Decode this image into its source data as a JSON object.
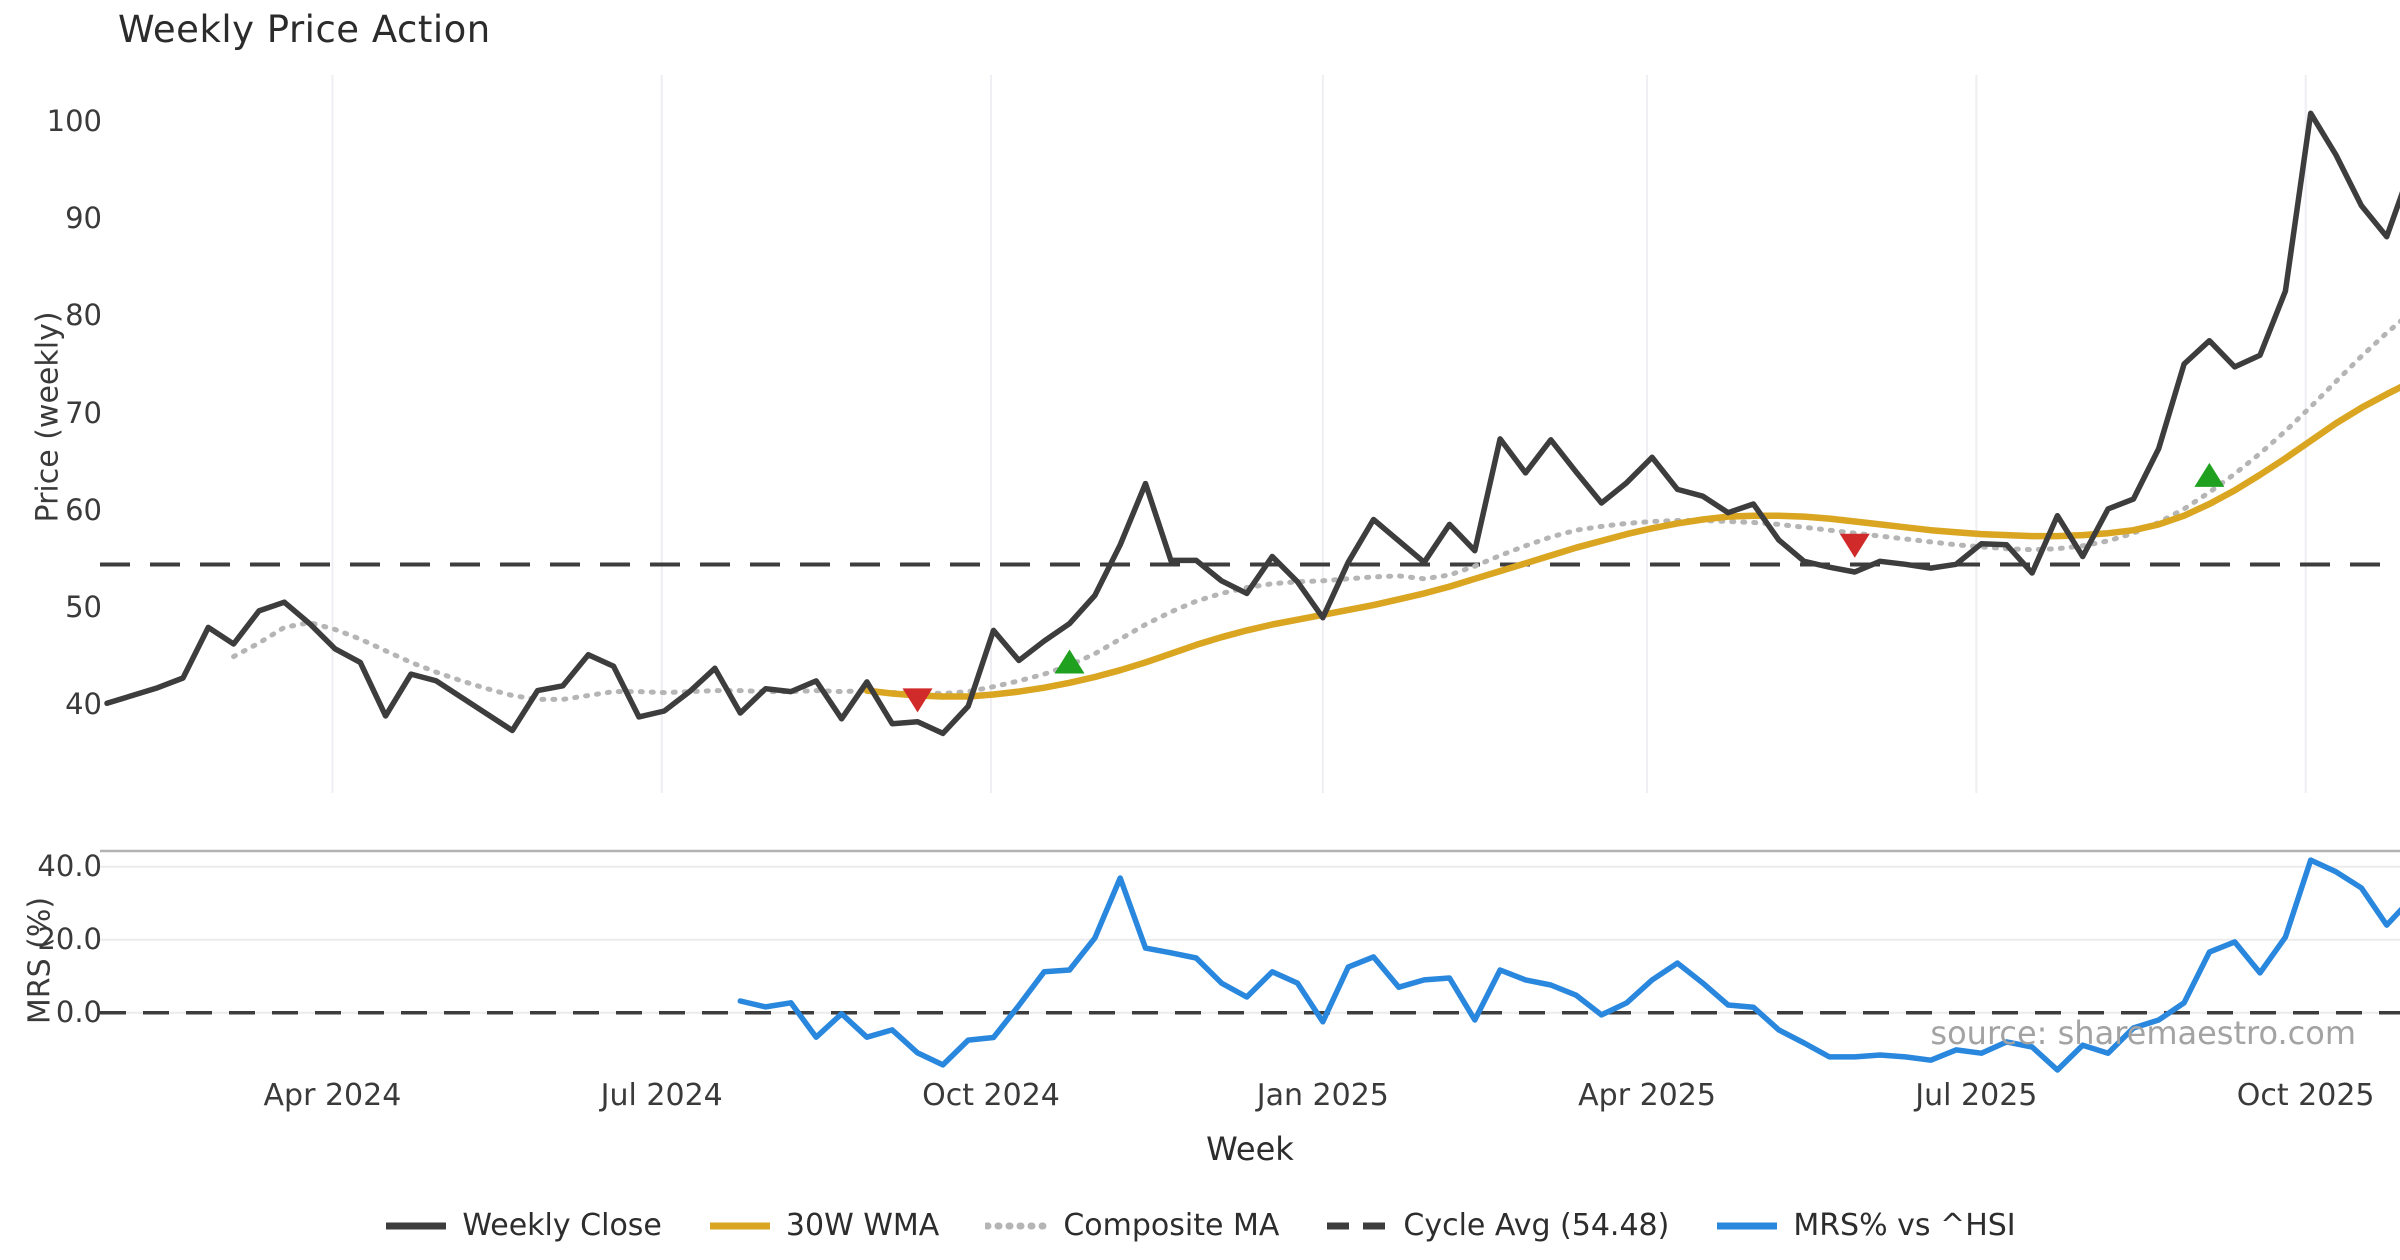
{
  "title": "Weekly Price Action",
  "xlabel": "Week",
  "source_text": "source: sharemaestro.com",
  "price_panel": {
    "ylabel": "Price (weekly)",
    "yticks": [
      "40",
      "50",
      "60",
      "70",
      "80",
      "90",
      "100"
    ]
  },
  "mrs_panel": {
    "ylabel": "MRS (%)",
    "yticks": [
      "0.0",
      "20.0",
      "40.0"
    ]
  },
  "legend": {
    "items": [
      {
        "label": "Weekly Close",
        "color": "#3d3d3d",
        "style": "solid"
      },
      {
        "label": "30W WMA",
        "color": "#DAA520",
        "style": "solid"
      },
      {
        "label": "Composite MA",
        "color": "#b5b5b5",
        "style": "dotted"
      },
      {
        "label": "Cycle Avg (54.48)",
        "color": "#3d3d3d",
        "style": "dashed"
      },
      {
        "label": "MRS% vs ^HSI",
        "color": "#2a87de",
        "style": "solid"
      }
    ]
  },
  "colors": {
    "weekly_close": "#3d3d3d",
    "wma_30w": "#DAA520",
    "composite_ma": "#b5b5b5",
    "cycle_avg": "#3d3d3d",
    "mrs": "#2a87de",
    "buy_marker": "#1fa01f",
    "sell_marker": "#d02a2a",
    "gridline": "#eeeef3",
    "panel_border": "#b3b3b3",
    "mrs_gridline": "#ececec"
  },
  "chart_data": {
    "type": "line",
    "title": "Weekly Price Action",
    "xlabel": "Week",
    "x_unit": "week_index",
    "n_weeks": 92,
    "x_ticks": [
      {
        "label": "Apr 2024",
        "week": 8.9
      },
      {
        "label": "Jul 2024",
        "week": 21.9
      },
      {
        "label": "Oct 2024",
        "week": 34.9
      },
      {
        "label": "Jan 2025",
        "week": 48.0
      },
      {
        "label": "Apr 2025",
        "week": 60.8
      },
      {
        "label": "Jul 2025",
        "week": 73.8
      },
      {
        "label": "Oct 2025",
        "week": 86.8
      }
    ],
    "price_panel": {
      "ylabel": "Price (weekly)",
      "ylim": [
        36,
        103
      ],
      "yticks": [
        40,
        50,
        60,
        70,
        80,
        90,
        100
      ],
      "cycle_avg": 54.48,
      "series": [
        {
          "name": "Weekly Close",
          "style": "solid",
          "start_week": 0,
          "values": [
            40.2,
            41.0,
            41.8,
            42.8,
            48.0,
            46.3,
            49.7,
            50.6,
            48.4,
            45.8,
            44.4,
            38.9,
            43.2,
            42.5,
            40.8,
            39.1,
            37.4,
            41.5,
            42.0,
            45.2,
            44.0,
            38.8,
            39.4,
            41.4,
            43.8,
            39.2,
            41.7,
            41.4,
            42.5,
            38.6,
            42.4,
            38.1,
            38.3,
            37.1,
            39.9,
            47.7,
            44.6,
            46.6,
            48.4,
            51.3,
            56.5,
            62.8,
            54.9,
            54.9,
            52.8,
            51.5,
            55.3,
            52.7,
            49.0,
            54.7,
            59.1,
            56.9,
            54.7,
            58.6,
            55.9,
            67.4,
            63.9,
            67.3,
            64.0,
            60.8,
            62.9,
            65.5,
            62.2,
            61.5,
            59.8,
            60.7,
            57.0,
            54.8,
            54.2,
            53.7,
            54.8,
            54.5,
            54.1,
            54.5,
            56.6,
            56.5,
            53.6,
            59.5,
            55.3,
            60.2,
            61.2,
            66.4,
            75.1,
            77.5,
            74.8,
            76.0,
            82.6,
            100.9,
            96.6,
            91.4,
            88.2,
            95.5
          ]
        },
        {
          "name": "30W WMA",
          "style": "solid",
          "start_week": 30,
          "values": [
            41.5,
            41.2,
            41.0,
            40.9,
            40.9,
            41.1,
            41.4,
            41.8,
            42.3,
            42.9,
            43.6,
            44.4,
            45.3,
            46.2,
            47.0,
            47.7,
            48.3,
            48.8,
            49.3,
            49.8,
            50.3,
            50.9,
            51.5,
            52.2,
            53.0,
            53.8,
            54.6,
            55.4,
            56.2,
            56.9,
            57.6,
            58.2,
            58.7,
            59.1,
            59.4,
            59.5,
            59.5,
            59.4,
            59.2,
            58.9,
            58.6,
            58.3,
            58.0,
            57.8,
            57.6,
            57.5,
            57.4,
            57.4,
            57.5,
            57.7,
            58.0,
            58.6,
            59.5,
            60.7,
            62.1,
            63.7,
            65.4,
            67.2,
            69.0,
            70.6,
            72.0,
            73.3
          ]
        },
        {
          "name": "Composite MA",
          "style": "dotted",
          "start_week": 5,
          "values": [
            45.0,
            46.4,
            48.0,
            48.5,
            47.8,
            46.8,
            45.6,
            44.4,
            43.4,
            42.5,
            41.7,
            41.0,
            40.6,
            40.6,
            41.0,
            41.4,
            41.4,
            41.3,
            41.4,
            41.5,
            41.5,
            41.4,
            41.4,
            41.5,
            41.4,
            41.5,
            41.3,
            41.3,
            41.2,
            41.4,
            41.9,
            42.5,
            43.2,
            44.1,
            45.3,
            46.8,
            48.3,
            49.6,
            50.7,
            51.5,
            52.1,
            52.5,
            52.7,
            52.8,
            53.0,
            53.2,
            53.3,
            53.0,
            53.4,
            54.3,
            55.4,
            56.4,
            57.3,
            58.0,
            58.4,
            58.7,
            58.9,
            59.0,
            59.0,
            58.9,
            58.8,
            58.6,
            58.3,
            58.0,
            57.7,
            57.4,
            57.1,
            56.8,
            56.5,
            56.3,
            56.1,
            56.0,
            56.1,
            56.4,
            56.9,
            57.7,
            58.8,
            60.2,
            61.9,
            63.8,
            65.9,
            68.2,
            70.7,
            73.3,
            75.9,
            78.3,
            80.5
          ]
        }
      ],
      "markers": [
        {
          "type": "sell",
          "shape": "triangle-down",
          "week": 32,
          "price": 40.5
        },
        {
          "type": "buy",
          "shape": "triangle-up",
          "week": 38,
          "price": 44.5
        },
        {
          "type": "sell",
          "shape": "triangle-down",
          "week": 69,
          "price": 56.4
        },
        {
          "type": "buy",
          "shape": "triangle-up",
          "week": 83,
          "price": 63.7
        }
      ]
    },
    "mrs_panel": {
      "ylabel": "MRS (%)",
      "ylim": [
        -18,
        44
      ],
      "yticks": [
        0.0,
        20.0,
        40.0
      ],
      "zero_line": 0,
      "series": [
        {
          "name": "MRS% vs ^HSI",
          "style": "solid",
          "start_week": 25,
          "values": [
            3.2,
            1.6,
            2.7,
            -6.7,
            -0.3,
            -6.7,
            -4.7,
            -11.0,
            -14.3,
            -7.5,
            -6.8,
            2.0,
            11.2,
            11.7,
            20.5,
            36.9,
            17.7,
            16.4,
            15.0,
            8.1,
            4.3,
            11.2,
            8.1,
            -2.5,
            12.5,
            15.3,
            7.0,
            9.0,
            9.5,
            -2.0,
            11.7,
            9.0,
            7.6,
            4.8,
            -0.6,
            2.7,
            9.0,
            13.6,
            8.1,
            2.1,
            1.5,
            -4.7,
            -8.3,
            -12.1,
            -12.1,
            -11.6,
            -12.1,
            -13.0,
            -10.2,
            -11.1,
            -8.0,
            -9.4,
            -15.7,
            -8.9,
            -11.1,
            -4.2,
            -2.0,
            2.7,
            16.6,
            19.4,
            10.9,
            20.7,
            41.8,
            38.6,
            34.2,
            24.0,
            31.4
          ]
        }
      ]
    }
  }
}
